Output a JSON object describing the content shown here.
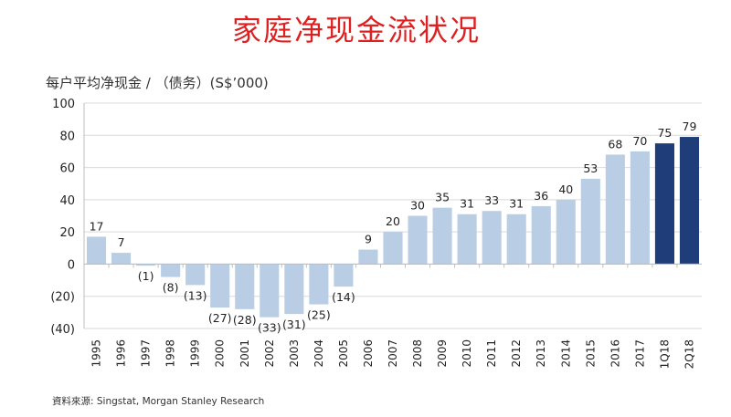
{
  "title": "家庭净现金流状况",
  "source": "資料來源: Singstat, Morgan Stanley Research",
  "chart_data": {
    "type": "bar",
    "title": "家庭净现金流状况",
    "ylabel": "每户平均净现金 / （债务）(S$’000)",
    "xlabel": "",
    "ylim": [
      -40,
      100
    ],
    "yticks": [
      100,
      80,
      60,
      40,
      20,
      0,
      -20,
      -40
    ],
    "ytick_labels": [
      "100",
      "80",
      "60",
      "40",
      "20",
      "0",
      "(20)",
      "(40)"
    ],
    "grid": true,
    "categories": [
      "1995",
      "1996",
      "1997",
      "1998",
      "1999",
      "2000",
      "2001",
      "2002",
      "2003",
      "2004",
      "2005",
      "2006",
      "2007",
      "2008",
      "2009",
      "2010",
      "2011",
      "2012",
      "2013",
      "2014",
      "2015",
      "2016",
      "2017",
      "1Q18",
      "2Q18"
    ],
    "values": [
      17,
      7,
      -1,
      -8,
      -13,
      -27,
      -28,
      -33,
      -31,
      -25,
      -14,
      9,
      20,
      30,
      35,
      31,
      33,
      31,
      36,
      40,
      53,
      68,
      70,
      75,
      79
    ],
    "labels": [
      "17",
      "7",
      "(1)",
      "(8)",
      "(13)",
      "(27)",
      "(28)",
      "(33)",
      "(31)",
      "(25)",
      "(14)",
      "9",
      "20",
      "30",
      "35",
      "31",
      "33",
      "31",
      "36",
      "40",
      "53",
      "68",
      "70",
      "75",
      "79"
    ],
    "highlight": [
      "1Q18",
      "2Q18"
    ],
    "colors": {
      "normal": "#b9cde5",
      "highlight": "#1f3d78",
      "grid": "#d9d9d9"
    }
  }
}
